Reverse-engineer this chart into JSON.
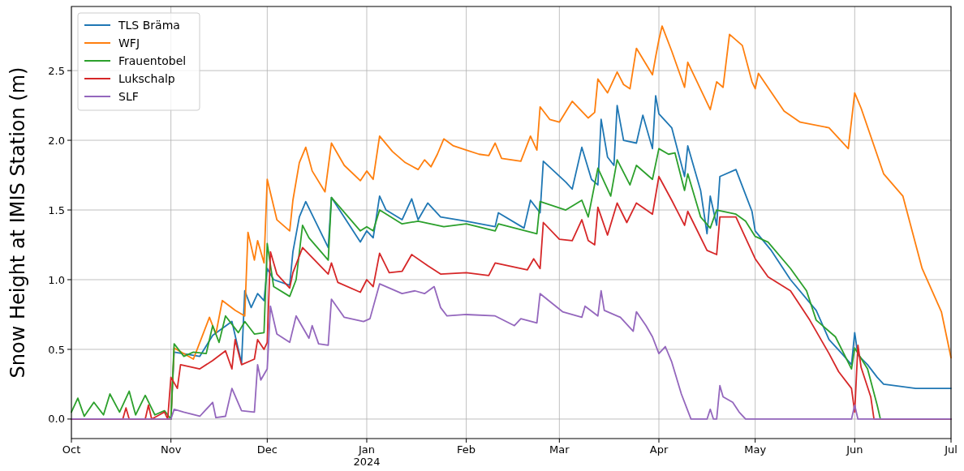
{
  "chart_data": {
    "type": "line",
    "ylabel": "Snow Height at IMIS Station (m)",
    "xlim": [
      "2023-10-01",
      "2024-07-01"
    ],
    "xticks": [
      {
        "value": "2023-10-01",
        "label": "Oct"
      },
      {
        "value": "2023-11-01",
        "label": "Nov"
      },
      {
        "value": "2023-12-01",
        "label": "Dec"
      },
      {
        "value": "2024-01-01",
        "label": "Jan\n2024"
      },
      {
        "value": "2024-02-01",
        "label": "Feb"
      },
      {
        "value": "2024-03-01",
        "label": "Mar"
      },
      {
        "value": "2024-04-01",
        "label": "Apr"
      },
      {
        "value": "2024-05-01",
        "label": "May"
      },
      {
        "value": "2024-06-01",
        "label": "Jun"
      },
      {
        "value": "2024-07-01",
        "label": "Jul"
      }
    ],
    "ylim": [
      -0.14,
      2.96
    ],
    "yticks": [
      {
        "value": 0,
        "label": "0.0"
      },
      {
        "value": 0.5,
        "label": "0.5"
      },
      {
        "value": 1,
        "label": "1.0"
      },
      {
        "value": 1.5,
        "label": "1.5"
      },
      {
        "value": 2,
        "label": "2.0"
      },
      {
        "value": 2.5,
        "label": "2.5"
      }
    ],
    "grid": true,
    "legend": "top left",
    "line_style": "solid",
    "series": [
      {
        "name": "TLS Bräma",
        "color": "#1f77b4",
        "x": [
          "2023-10-01",
          "2023-11-01",
          "2023-11-02",
          "2023-11-10",
          "2023-11-14",
          "2023-11-20",
          "2023-11-23",
          "2023-11-24",
          "2023-11-26",
          "2023-11-28",
          "2023-11-30",
          "2023-12-01",
          "2023-12-03",
          "2023-12-08",
          "2023-12-09",
          "2023-12-11",
          "2023-12-13",
          "2023-12-20",
          "2023-12-21",
          "2023-12-30",
          "2024-01-01",
          "2024-01-03",
          "2024-01-05",
          "2024-01-07",
          "2024-01-12",
          "2024-01-15",
          "2024-01-17",
          "2024-01-20",
          "2024-01-24",
          "2024-02-01",
          "2024-02-10",
          "2024-02-11",
          "2024-02-19",
          "2024-02-21",
          "2024-02-24",
          "2024-02-25",
          "2024-03-03",
          "2024-03-05",
          "2024-03-08",
          "2024-03-11",
          "2024-03-13",
          "2024-03-14",
          "2024-03-16",
          "2024-03-18",
          "2024-03-19",
          "2024-03-21",
          "2024-03-25",
          "2024-03-27",
          "2024-03-30",
          "2024-03-31",
          "2024-04-01",
          "2024-04-05",
          "2024-04-09",
          "2024-04-10",
          "2024-04-14",
          "2024-04-16",
          "2024-04-17",
          "2024-04-19",
          "2024-04-20",
          "2024-04-25",
          "2024-04-30",
          "2024-05-01",
          "2024-05-06",
          "2024-05-12",
          "2024-05-20",
          "2024-05-24",
          "2024-05-28",
          "2024-05-31",
          "2024-06-01",
          "2024-06-02",
          "2024-06-05",
          "2024-06-08",
          "2024-06-10",
          "2024-06-20",
          "2024-07-01"
        ],
        "values": [
          0,
          0,
          0.48,
          0.45,
          0.6,
          0.7,
          0.4,
          0.92,
          0.8,
          0.9,
          0.85,
          1.08,
          1.0,
          0.96,
          1.2,
          1.45,
          1.56,
          1.23,
          1.59,
          1.27,
          1.35,
          1.3,
          1.6,
          1.5,
          1.43,
          1.58,
          1.43,
          1.55,
          1.45,
          1.42,
          1.38,
          1.48,
          1.37,
          1.57,
          1.48,
          1.85,
          1.7,
          1.65,
          1.95,
          1.72,
          1.68,
          2.15,
          1.88,
          1.82,
          2.25,
          2.0,
          1.98,
          2.18,
          1.94,
          2.32,
          2.19,
          2.09,
          1.74,
          1.96,
          1.64,
          1.33,
          1.6,
          1.39,
          1.74,
          1.79,
          1.49,
          1.35,
          1.21,
          1.0,
          0.78,
          0.57,
          0.47,
          0.39,
          0.62,
          0.46,
          0.39,
          0.3,
          0.25,
          0.22,
          0.22
        ]
      },
      {
        "name": "WFJ",
        "color": "#ff7f0e",
        "x": [
          "2023-10-01",
          "2023-11-01",
          "2023-11-02",
          "2023-11-08",
          "2023-11-10",
          "2023-11-13",
          "2023-11-15",
          "2023-11-17",
          "2023-11-21",
          "2023-11-24",
          "2023-11-25",
          "2023-11-27",
          "2023-11-28",
          "2023-11-30",
          "2023-12-01",
          "2023-12-04",
          "2023-12-08",
          "2023-12-09",
          "2023-12-11",
          "2023-12-13",
          "2023-12-15",
          "2023-12-19",
          "2023-12-21",
          "2023-12-25",
          "2023-12-30",
          "2024-01-01",
          "2024-01-03",
          "2024-01-05",
          "2024-01-09",
          "2024-01-13",
          "2024-01-17",
          "2024-01-19",
          "2024-01-21",
          "2024-01-23",
          "2024-01-25",
          "2024-01-28",
          "2024-02-01",
          "2024-02-05",
          "2024-02-08",
          "2024-02-10",
          "2024-02-12",
          "2024-02-18",
          "2024-02-21",
          "2024-02-23",
          "2024-02-24",
          "2024-02-27",
          "2024-03-01",
          "2024-03-05",
          "2024-03-10",
          "2024-03-12",
          "2024-03-13",
          "2024-03-16",
          "2024-03-19",
          "2024-03-21",
          "2024-03-23",
          "2024-03-25",
          "2024-03-30",
          "2024-03-31",
          "2024-04-01",
          "2024-04-02",
          "2024-04-05",
          "2024-04-09",
          "2024-04-10",
          "2024-04-17",
          "2024-04-19",
          "2024-04-21",
          "2024-04-23",
          "2024-04-27",
          "2024-04-30",
          "2024-05-01",
          "2024-05-02",
          "2024-05-10",
          "2024-05-15",
          "2024-05-24",
          "2024-05-30",
          "2024-06-01",
          "2024-06-03",
          "2024-06-10",
          "2024-06-16",
          "2024-06-22",
          "2024-06-28",
          "2024-07-01"
        ],
        "values": [
          0,
          0,
          0.51,
          0.43,
          0.55,
          0.73,
          0.61,
          0.85,
          0.78,
          0.74,
          1.34,
          1.14,
          1.28,
          1.12,
          1.72,
          1.43,
          1.35,
          1.57,
          1.84,
          1.95,
          1.78,
          1.63,
          1.98,
          1.82,
          1.71,
          1.78,
          1.72,
          2.03,
          1.92,
          1.84,
          1.79,
          1.86,
          1.81,
          1.9,
          2.01,
          1.96,
          1.93,
          1.9,
          1.89,
          1.98,
          1.87,
          1.85,
          2.03,
          1.93,
          2.24,
          2.15,
          2.13,
          2.28,
          2.16,
          2.2,
          2.44,
          2.34,
          2.49,
          2.4,
          2.37,
          2.66,
          2.47,
          2.6,
          2.72,
          2.82,
          2.64,
          2.38,
          2.56,
          2.22,
          2.42,
          2.38,
          2.76,
          2.68,
          2.42,
          2.37,
          2.48,
          2.21,
          2.13,
          2.09,
          1.94,
          2.34,
          2.23,
          1.76,
          1.6,
          1.08,
          0.77,
          0.44
        ]
      },
      {
        "name": "Frauentobel",
        "color": "#2ca02c",
        "x": [
          "2023-10-01",
          "2023-10-03",
          "2023-10-05",
          "2023-10-08",
          "2023-10-11",
          "2023-10-13",
          "2023-10-16",
          "2023-10-19",
          "2023-10-21",
          "2023-10-24",
          "2023-10-27",
          "2023-10-30",
          "2023-11-01",
          "2023-11-02",
          "2023-11-05",
          "2023-11-08",
          "2023-11-12",
          "2023-11-14",
          "2023-11-16",
          "2023-11-18",
          "2023-11-22",
          "2023-11-24",
          "2023-11-27",
          "2023-11-30",
          "2023-12-01",
          "2023-12-03",
          "2023-12-08",
          "2023-12-10",
          "2023-12-12",
          "2023-12-14",
          "2023-12-20",
          "2023-12-21",
          "2023-12-30",
          "2024-01-01",
          "2024-01-03",
          "2024-01-05",
          "2024-01-12",
          "2024-01-17",
          "2024-01-25",
          "2024-02-01",
          "2024-02-10",
          "2024-02-11",
          "2024-02-23",
          "2024-02-24",
          "2024-03-03",
          "2024-03-08",
          "2024-03-10",
          "2024-03-13",
          "2024-03-17",
          "2024-03-19",
          "2024-03-23",
          "2024-03-25",
          "2024-03-30",
          "2024-04-01",
          "2024-04-04",
          "2024-04-06",
          "2024-04-09",
          "2024-04-10",
          "2024-04-14",
          "2024-04-17",
          "2024-04-19",
          "2024-04-25",
          "2024-04-28",
          "2024-05-01",
          "2024-05-05",
          "2024-05-12",
          "2024-05-17",
          "2024-05-20",
          "2024-05-26",
          "2024-05-31",
          "2024-06-01",
          "2024-06-05",
          "2024-06-08",
          "2024-06-09",
          "2024-07-01"
        ],
        "values": [
          0.05,
          0.15,
          0.02,
          0.12,
          0.03,
          0.18,
          0.05,
          0.2,
          0.03,
          0.17,
          0.03,
          0.06,
          0,
          0.54,
          0.45,
          0.48,
          0.47,
          0.67,
          0.55,
          0.74,
          0.62,
          0.7,
          0.61,
          0.62,
          1.26,
          0.95,
          0.88,
          1.0,
          1.39,
          1.3,
          1.14,
          1.59,
          1.35,
          1.38,
          1.35,
          1.5,
          1.4,
          1.42,
          1.38,
          1.4,
          1.35,
          1.4,
          1.33,
          1.56,
          1.5,
          1.57,
          1.45,
          1.8,
          1.6,
          1.86,
          1.68,
          1.82,
          1.72,
          1.94,
          1.9,
          1.91,
          1.64,
          1.76,
          1.45,
          1.37,
          1.5,
          1.47,
          1.42,
          1.31,
          1.27,
          1.08,
          0.92,
          0.71,
          0.59,
          0.36,
          0.51,
          0.36,
          0.1,
          0,
          0
        ]
      },
      {
        "name": "Lukschalp",
        "color": "#d62728",
        "x": [
          "2023-10-01",
          "2023-10-17",
          "2023-10-18",
          "2023-10-19",
          "2023-10-24",
          "2023-10-25",
          "2023-10-26",
          "2023-10-30",
          "2023-10-31",
          "2023-11-01",
          "2023-11-03",
          "2023-11-04",
          "2023-11-10",
          "2023-11-14",
          "2023-11-18",
          "2023-11-20",
          "2023-11-21",
          "2023-11-23",
          "2023-11-27",
          "2023-11-28",
          "2023-11-30",
          "2023-12-01",
          "2023-12-02",
          "2023-12-04",
          "2023-12-08",
          "2023-12-09",
          "2023-12-12",
          "2023-12-20",
          "2023-12-21",
          "2023-12-23",
          "2023-12-30",
          "2024-01-01",
          "2024-01-03",
          "2024-01-05",
          "2024-01-08",
          "2024-01-12",
          "2024-01-15",
          "2024-01-20",
          "2024-01-24",
          "2024-02-01",
          "2024-02-08",
          "2024-02-10",
          "2024-02-20",
          "2024-02-22",
          "2024-02-24",
          "2024-02-25",
          "2024-03-01",
          "2024-03-05",
          "2024-03-08",
          "2024-03-10",
          "2024-03-12",
          "2024-03-13",
          "2024-03-16",
          "2024-03-19",
          "2024-03-22",
          "2024-03-25",
          "2024-03-30",
          "2024-04-01",
          "2024-04-05",
          "2024-04-09",
          "2024-04-10",
          "2024-04-16",
          "2024-04-19",
          "2024-04-20",
          "2024-04-25",
          "2024-05-01",
          "2024-05-05",
          "2024-05-12",
          "2024-05-18",
          "2024-05-24",
          "2024-05-27",
          "2024-05-31",
          "2024-06-01",
          "2024-06-02",
          "2024-06-03",
          "2024-06-06",
          "2024-06-07",
          "2024-07-01"
        ],
        "values": [
          0,
          0,
          0.08,
          0,
          0,
          0.1,
          0,
          0.05,
          0,
          0.3,
          0.22,
          0.39,
          0.36,
          0.42,
          0.49,
          0.36,
          0.57,
          0.39,
          0.43,
          0.57,
          0.5,
          0.55,
          1.2,
          1.04,
          0.94,
          1.05,
          1.23,
          1.04,
          1.12,
          0.98,
          0.91,
          1.0,
          0.95,
          1.19,
          1.05,
          1.06,
          1.18,
          1.1,
          1.04,
          1.05,
          1.03,
          1.12,
          1.07,
          1.15,
          1.08,
          1.41,
          1.29,
          1.28,
          1.43,
          1.28,
          1.25,
          1.52,
          1.32,
          1.55,
          1.41,
          1.55,
          1.47,
          1.74,
          1.57,
          1.39,
          1.49,
          1.21,
          1.18,
          1.45,
          1.45,
          1.15,
          1.02,
          0.92,
          0.71,
          0.47,
          0.34,
          0.22,
          0.05,
          0.53,
          0.37,
          0.16,
          0,
          0
        ]
      },
      {
        "name": "SLF",
        "color": "#9467bd",
        "x": [
          "2023-10-01",
          "2023-11-01",
          "2023-11-02",
          "2023-11-05",
          "2023-11-10",
          "2023-11-14",
          "2023-11-15",
          "2023-11-18",
          "2023-11-20",
          "2023-11-23",
          "2023-11-27",
          "2023-11-28",
          "2023-11-29",
          "2023-12-01",
          "2023-12-02",
          "2023-12-04",
          "2023-12-08",
          "2023-12-10",
          "2023-12-14",
          "2023-12-15",
          "2023-12-17",
          "2023-12-20",
          "2023-12-21",
          "2023-12-25",
          "2023-12-31",
          "2024-01-02",
          "2024-01-05",
          "2024-01-12",
          "2024-01-16",
          "2024-01-19",
          "2024-01-22",
          "2024-01-24",
          "2024-01-26",
          "2024-02-01",
          "2024-02-10",
          "2024-02-16",
          "2024-02-18",
          "2024-02-23",
          "2024-02-24",
          "2024-03-02",
          "2024-03-08",
          "2024-03-09",
          "2024-03-13",
          "2024-03-14",
          "2024-03-15",
          "2024-03-20",
          "2024-03-24",
          "2024-03-25",
          "2024-03-28",
          "2024-03-30",
          "2024-04-01",
          "2024-04-03",
          "2024-04-05",
          "2024-04-08",
          "2024-04-10",
          "2024-04-11",
          "2024-04-16",
          "2024-04-17",
          "2024-04-18",
          "2024-04-19",
          "2024-04-20",
          "2024-04-21",
          "2024-04-24",
          "2024-04-26",
          "2024-04-28",
          "2024-05-31",
          "2024-06-01",
          "2024-06-02",
          "2024-07-01"
        ],
        "values": [
          0,
          0,
          0.07,
          0.05,
          0.02,
          0.12,
          0.01,
          0.02,
          0.22,
          0.06,
          0.05,
          0.39,
          0.28,
          0.36,
          0.81,
          0.61,
          0.55,
          0.74,
          0.58,
          0.67,
          0.54,
          0.53,
          0.86,
          0.73,
          0.7,
          0.72,
          0.97,
          0.9,
          0.92,
          0.9,
          0.95,
          0.8,
          0.74,
          0.75,
          0.74,
          0.67,
          0.72,
          0.69,
          0.9,
          0.77,
          0.73,
          0.81,
          0.74,
          0.92,
          0.78,
          0.73,
          0.63,
          0.77,
          0.67,
          0.59,
          0.47,
          0.52,
          0.41,
          0.18,
          0.06,
          0,
          0,
          0.07,
          0,
          0,
          0.24,
          0.16,
          0.12,
          0.05,
          0,
          0,
          0.1,
          0,
          0
        ]
      }
    ]
  }
}
